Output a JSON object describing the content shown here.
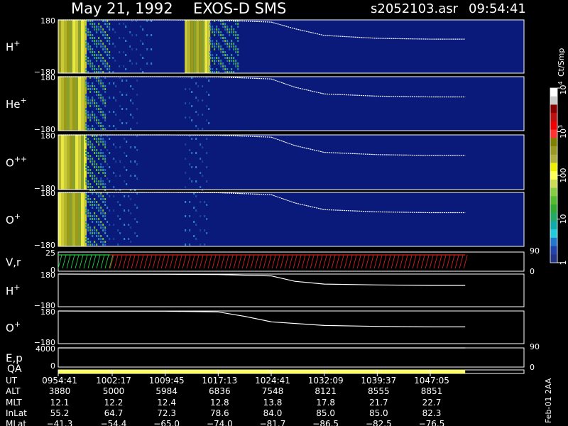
{
  "header": {
    "date": "May 21, 1992",
    "instrument": "EXOS-D SMS",
    "file": "s2052103.asr",
    "time": "09:54:41"
  },
  "colors": {
    "background": "#000000",
    "spectrogram_bg": "#0a1a7a",
    "trace": "#ffffff",
    "qa_bar": "#ffff66",
    "vr_red": "#cc2222",
    "vr_green": "#22cc44"
  },
  "chart_data": [
    {
      "type": "heatmap",
      "panel": "H+",
      "label": "H",
      "superscript": "+",
      "ytick_top": "180",
      "ytick_bottom": "−180",
      "ylim": [
        -180,
        180
      ],
      "activity": [
        {
          "ut_start": "0954:41",
          "ut_end": "0958:30",
          "level": "high"
        },
        {
          "ut_start": "0958:30",
          "ut_end": "1002:00",
          "level": "medium"
        },
        {
          "ut_start": "1002:00",
          "ut_end": "1008:00",
          "level": "low"
        },
        {
          "ut_start": "1012:30",
          "ut_end": "1016:00",
          "level": "high"
        },
        {
          "ut_start": "1016:00",
          "ut_end": "1020:00",
          "level": "medium"
        }
      ],
      "trace": [
        {
          "ut": "0954:41",
          "y": 180
        },
        {
          "ut": "1009:45",
          "y": 180
        },
        {
          "ut": "1017:13",
          "y": 178
        },
        {
          "ut": "1024:41",
          "y": 165
        },
        {
          "ut": "1028:00",
          "y": 120
        },
        {
          "ut": "1032:09",
          "y": 75
        },
        {
          "ut": "1039:37",
          "y": 55
        },
        {
          "ut": "1047:05",
          "y": 50
        },
        {
          "ut": "1052:00",
          "y": 50
        }
      ]
    },
    {
      "type": "heatmap",
      "panel": "He+",
      "label": "He",
      "superscript": "+",
      "ytick_top": "180",
      "ytick_bottom": "−180",
      "ylim": [
        -180,
        180
      ],
      "activity": [
        {
          "ut_start": "0954:41",
          "ut_end": "0958:30",
          "level": "high"
        },
        {
          "ut_start": "0958:30",
          "ut_end": "1001:30",
          "level": "medium"
        },
        {
          "ut_start": "1001:30",
          "ut_end": "1006:00",
          "level": "low"
        },
        {
          "ut_start": "1012:30",
          "ut_end": "1016:00",
          "level": "low"
        }
      ],
      "trace": [
        {
          "ut": "0954:41",
          "y": 180
        },
        {
          "ut": "1009:45",
          "y": 180
        },
        {
          "ut": "1017:13",
          "y": 178
        },
        {
          "ut": "1024:41",
          "y": 165
        },
        {
          "ut": "1028:00",
          "y": 110
        },
        {
          "ut": "1032:09",
          "y": 65
        },
        {
          "ut": "1039:37",
          "y": 50
        },
        {
          "ut": "1047:05",
          "y": 45
        },
        {
          "ut": "1052:00",
          "y": 45
        }
      ]
    },
    {
      "type": "heatmap",
      "panel": "O++",
      "label": "O",
      "superscript": "++",
      "ytick_top": "180",
      "ytick_bottom": "−180",
      "ylim": [
        -180,
        180
      ],
      "activity": [
        {
          "ut_start": "0954:41",
          "ut_end": "0958:30",
          "level": "high"
        },
        {
          "ut_start": "0958:30",
          "ut_end": "1001:30",
          "level": "medium"
        },
        {
          "ut_start": "1001:30",
          "ut_end": "1006:00",
          "level": "low"
        },
        {
          "ut_start": "1012:30",
          "ut_end": "1016:00",
          "level": "low"
        }
      ],
      "trace": [
        {
          "ut": "0954:41",
          "y": 180
        },
        {
          "ut": "1009:45",
          "y": 180
        },
        {
          "ut": "1017:13",
          "y": 178
        },
        {
          "ut": "1024:41",
          "y": 165
        },
        {
          "ut": "1028:00",
          "y": 110
        },
        {
          "ut": "1032:09",
          "y": 65
        },
        {
          "ut": "1039:37",
          "y": 50
        },
        {
          "ut": "1047:05",
          "y": 45
        },
        {
          "ut": "1052:00",
          "y": 45
        }
      ]
    },
    {
      "type": "heatmap",
      "panel": "O+",
      "label": "O",
      "superscript": "+",
      "ytick_top": "180",
      "ytick_bottom": "−180",
      "ylim": [
        -180,
        180
      ],
      "activity": [
        {
          "ut_start": "0954:41",
          "ut_end": "0958:30",
          "level": "high"
        },
        {
          "ut_start": "0958:30",
          "ut_end": "1001:30",
          "level": "medium"
        },
        {
          "ut_start": "1001:30",
          "ut_end": "1006:00",
          "level": "low"
        },
        {
          "ut_start": "1012:30",
          "ut_end": "1016:00",
          "level": "low"
        }
      ],
      "trace": [
        {
          "ut": "0954:41",
          "y": 180
        },
        {
          "ut": "1009:45",
          "y": 180
        },
        {
          "ut": "1017:13",
          "y": 178
        },
        {
          "ut": "1024:41",
          "y": 165
        },
        {
          "ut": "1028:00",
          "y": 110
        },
        {
          "ut": "1032:09",
          "y": 65
        },
        {
          "ut": "1039:37",
          "y": 50
        },
        {
          "ut": "1047:05",
          "y": 45
        },
        {
          "ut": "1052:00",
          "y": 45
        }
      ]
    },
    {
      "type": "line",
      "panel": "V,r",
      "label": "V,r",
      "ytick_top": "25",
      "ytick_bottom": "0",
      "ylim": [
        0,
        25
      ],
      "right_ticks": [
        "90",
        "0"
      ],
      "series": [
        {
          "color": "#22cc44",
          "ut_start": "0954:41",
          "ut_end": "1002:00",
          "level": 22
        },
        {
          "color": "#cc2222",
          "ut_start": "1002:00",
          "ut_end": "1052:00",
          "level": 24
        }
      ]
    },
    {
      "type": "line",
      "panel": "H+ (lower)",
      "label": "H",
      "superscript": "+",
      "ytick_top": "180",
      "ytick_bottom": "−180",
      "ylim": [
        -180,
        180
      ],
      "trace": [
        {
          "ut": "0954:41",
          "y": 180
        },
        {
          "ut": "1009:45",
          "y": 178
        },
        {
          "ut": "1017:13",
          "y": 175
        },
        {
          "ut": "1024:41",
          "y": 160
        },
        {
          "ut": "1028:00",
          "y": 100
        },
        {
          "ut": "1032:09",
          "y": 70
        },
        {
          "ut": "1039:37",
          "y": 60
        },
        {
          "ut": "1047:05",
          "y": 55
        },
        {
          "ut": "1052:00",
          "y": 55
        }
      ]
    },
    {
      "type": "line",
      "panel": "O+ (lower)",
      "label": "O",
      "superscript": "+",
      "ytick_top": "180",
      "ytick_bottom": "−180",
      "ylim": [
        -180,
        180
      ],
      "trace": [
        {
          "ut": "0954:41",
          "y": 180
        },
        {
          "ut": "1009:45",
          "y": 178
        },
        {
          "ut": "1017:13",
          "y": 170
        },
        {
          "ut": "1021:00",
          "y": 120
        },
        {
          "ut": "1024:41",
          "y": 60
        },
        {
          "ut": "1032:09",
          "y": 20
        },
        {
          "ut": "1039:37",
          "y": 10
        },
        {
          "ut": "1047:05",
          "y": 5
        },
        {
          "ut": "1052:00",
          "y": 5
        }
      ]
    },
    {
      "type": "line",
      "panel": "E,p",
      "label": "E,p",
      "ytick_top": "4000",
      "ytick_bottom": "0",
      "ylim": [
        0,
        4000
      ],
      "right_ticks": [
        "90",
        "0"
      ],
      "trace": [
        {
          "ut": "0954:41",
          "y": 4000
        },
        {
          "ut": "1052:00",
          "y": 4000
        }
      ]
    },
    {
      "type": "bar",
      "panel": "QA",
      "label": "QA",
      "ut_start": "0954:41",
      "ut_end": "1052:00"
    }
  ],
  "colorbar": {
    "label": "Ct/Smp",
    "ticks": [
      {
        "value": 10000,
        "text": "10",
        "sup": "4"
      },
      {
        "value": 1000,
        "text": "10",
        "sup": "3"
      },
      {
        "value": 100,
        "text": "100",
        "sup": ""
      },
      {
        "value": 10,
        "text": "10",
        "sup": ""
      },
      {
        "value": 1,
        "text": "1",
        "sup": ""
      }
    ],
    "colors": [
      "#ffffff",
      "#cccccc",
      "#880000",
      "#bb1111",
      "#ee0000",
      "#ff3333",
      "#808000",
      "#9a9a22",
      "#b0b040",
      "#eeee00",
      "#ffff55",
      "#ccdd55",
      "#88cc44",
      "#55bb33",
      "#33aa33",
      "#22aa66",
      "#11aaaa",
      "#22ccdd",
      "#2277cc",
      "#2244aa",
      "#223388"
    ]
  },
  "footer": {
    "rows": [
      {
        "label": "UT",
        "values": [
          "0954:41",
          "1002:17",
          "1009:45",
          "1017:13",
          "1024:41",
          "1032:09",
          "1039:37",
          "1047:05"
        ]
      },
      {
        "label": "ALT",
        "values": [
          "3880",
          "5000",
          "5984",
          "6836",
          "7548",
          "8121",
          "8555",
          "8851"
        ]
      },
      {
        "label": "MLT",
        "values": [
          "12.1",
          "12.2",
          "12.4",
          "12.8",
          "13.8",
          "17.8",
          "21.7",
          "22.7"
        ]
      },
      {
        "label": "InLat",
        "values": [
          "55.2",
          "64.7",
          "72.3",
          "78.6",
          "84.0",
          "85.0",
          "85.0",
          "82.3"
        ]
      },
      {
        "label": "MLat",
        "values": [
          "−41.3",
          "−54.4",
          "−65.0",
          "−74.0",
          "−81.7",
          "−86.5",
          "−82.5",
          "−76.5"
        ]
      }
    ],
    "side_note": "Feb-01  2AA"
  }
}
